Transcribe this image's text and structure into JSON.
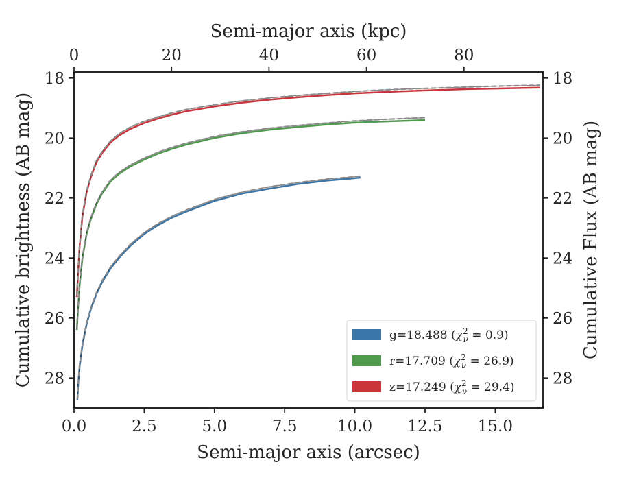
{
  "chart_data": {
    "type": "line",
    "xlabel": "Semi-major axis (arcsec)",
    "xlabel_top": "Semi-major axis (kpc)",
    "ylabel": "Cumulative brightness (AB mag)",
    "ylabel_right": "Cumulative Flux (AB mag)",
    "xlim": [
      0,
      16.7
    ],
    "xlim_top": [
      0,
      96.2
    ],
    "ylim": [
      29.0,
      17.8
    ],
    "y_inverted": true,
    "x_ticks": [
      "0.0",
      "2.5",
      "5.0",
      "7.5",
      "10.0",
      "12.5",
      "15.0"
    ],
    "x_tick_values": [
      0,
      2.5,
      5,
      7.5,
      10,
      12.5,
      15
    ],
    "x_top_ticks": [
      "0",
      "20",
      "40",
      "60",
      "80"
    ],
    "x_top_tick_values": [
      0,
      20,
      40,
      60,
      80
    ],
    "y_ticks": [
      "18",
      "20",
      "22",
      "24",
      "26",
      "28"
    ],
    "y_tick_values": [
      18,
      20,
      22,
      24,
      26,
      28
    ],
    "grid": false,
    "legend_position": "lower-right",
    "series": [
      {
        "name": "g=18.488 (χ²ν = 0.9)",
        "legend_main": "g=18.488 (",
        "legend_sup": "2",
        "legend_sub": "ν",
        "legend_tail": " = 0.9)",
        "color": "#3a75a8",
        "x": [
          0.12,
          0.15,
          0.2,
          0.3,
          0.45,
          0.6,
          0.8,
          1.0,
          1.3,
          1.6,
          2.0,
          2.5,
          3.0,
          3.5,
          4.0,
          5.0,
          6.0,
          7.0,
          8.0,
          9.0,
          10.0,
          10.2
        ],
        "y": [
          28.75,
          28.2,
          27.6,
          26.9,
          26.2,
          25.7,
          25.2,
          24.8,
          24.35,
          24.0,
          23.6,
          23.2,
          22.9,
          22.65,
          22.45,
          22.1,
          21.85,
          21.68,
          21.53,
          21.42,
          21.34,
          21.32
        ],
        "model_y": [
          28.7,
          28.15,
          27.55,
          26.85,
          26.15,
          25.65,
          25.15,
          24.75,
          24.3,
          23.95,
          23.55,
          23.15,
          22.85,
          22.6,
          22.4,
          22.05,
          21.8,
          21.62,
          21.48,
          21.37,
          21.29,
          21.27
        ]
      },
      {
        "name": "r=17.709 (χ²ν = 26.9)",
        "legend_main": "r=17.709 (",
        "legend_sup": "2",
        "legend_sub": "ν",
        "legend_tail": " = 26.9)",
        "color": "#4f9a4c",
        "x": [
          0.1,
          0.15,
          0.2,
          0.3,
          0.45,
          0.6,
          0.8,
          1.0,
          1.3,
          1.6,
          2.0,
          2.5,
          3.0,
          3.5,
          4.0,
          5.0,
          6.0,
          7.0,
          8.0,
          9.0,
          10.0,
          11.0,
          12.0,
          12.5
        ],
        "y": [
          26.4,
          25.6,
          24.9,
          24.0,
          23.2,
          22.7,
          22.2,
          21.85,
          21.45,
          21.2,
          20.95,
          20.72,
          20.52,
          20.36,
          20.22,
          20.0,
          19.84,
          19.72,
          19.63,
          19.55,
          19.49,
          19.45,
          19.42,
          19.4
        ],
        "model_y": [
          26.35,
          25.55,
          24.85,
          23.95,
          23.15,
          22.65,
          22.15,
          21.8,
          21.4,
          21.15,
          20.9,
          20.67,
          20.47,
          20.31,
          20.17,
          19.95,
          19.79,
          19.67,
          19.58,
          19.5,
          19.43,
          19.38,
          19.34,
          19.32
        ]
      },
      {
        "name": "z=17.249 (χ²ν = 29.4)",
        "legend_main": "z=17.249 (",
        "legend_sup": "2",
        "legend_sub": "ν",
        "legend_tail": " = 29.4)",
        "color": "#c9353a",
        "x": [
          0.1,
          0.15,
          0.2,
          0.3,
          0.45,
          0.6,
          0.8,
          1.0,
          1.3,
          1.6,
          2.0,
          2.5,
          3.0,
          3.5,
          4.0,
          5.0,
          6.0,
          7.0,
          8.0,
          9.0,
          10.0,
          11.0,
          12.0,
          13.0,
          14.0,
          15.0,
          16.0,
          16.6
        ],
        "y": [
          25.3,
          24.4,
          23.6,
          22.6,
          21.8,
          21.3,
          20.8,
          20.5,
          20.15,
          19.92,
          19.7,
          19.5,
          19.35,
          19.22,
          19.11,
          18.95,
          18.82,
          18.72,
          18.64,
          18.57,
          18.51,
          18.47,
          18.43,
          18.4,
          18.37,
          18.35,
          18.33,
          18.32
        ],
        "model_y": [
          25.25,
          24.35,
          23.55,
          22.55,
          21.75,
          21.25,
          20.75,
          20.45,
          20.1,
          19.86,
          19.64,
          19.44,
          19.29,
          19.16,
          19.05,
          18.89,
          18.76,
          18.66,
          18.58,
          18.51,
          18.45,
          18.4,
          18.36,
          18.33,
          18.3,
          18.27,
          18.25,
          18.24
        ]
      }
    ]
  }
}
